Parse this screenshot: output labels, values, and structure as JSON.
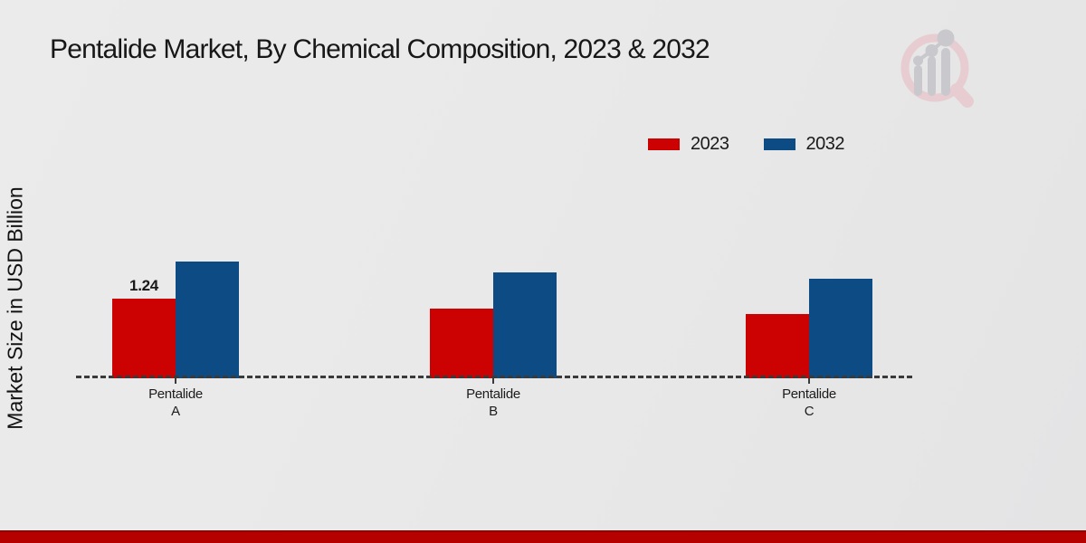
{
  "chart_data": {
    "type": "bar",
    "title": "Pentalide Market, By Chemical Composition, 2023 & 2032",
    "ylabel": "Market Size in USD Billion",
    "xlabel": "",
    "categories": [
      "Pentalide A",
      "Pentalide B",
      "Pentalide C"
    ],
    "series": [
      {
        "name": "2023",
        "color": "#cc0202",
        "values": [
          1.24,
          1.08,
          1.0
        ]
      },
      {
        "name": "2032",
        "color": "#0d4b85",
        "values": [
          1.82,
          1.65,
          1.55
        ]
      }
    ],
    "value_labels": [
      {
        "series": "2023",
        "category": "Pentalide A",
        "text": "1.24"
      }
    ],
    "ylim": [
      0,
      2
    ],
    "grid": false,
    "legend_position": "top-right",
    "baseline_style": "dashed",
    "y_axis_ticks_visible": false
  },
  "branding": {
    "logo_icon": "magnifier-bar-chart-watermark"
  },
  "footer": {
    "accent_color": "#b60101"
  }
}
